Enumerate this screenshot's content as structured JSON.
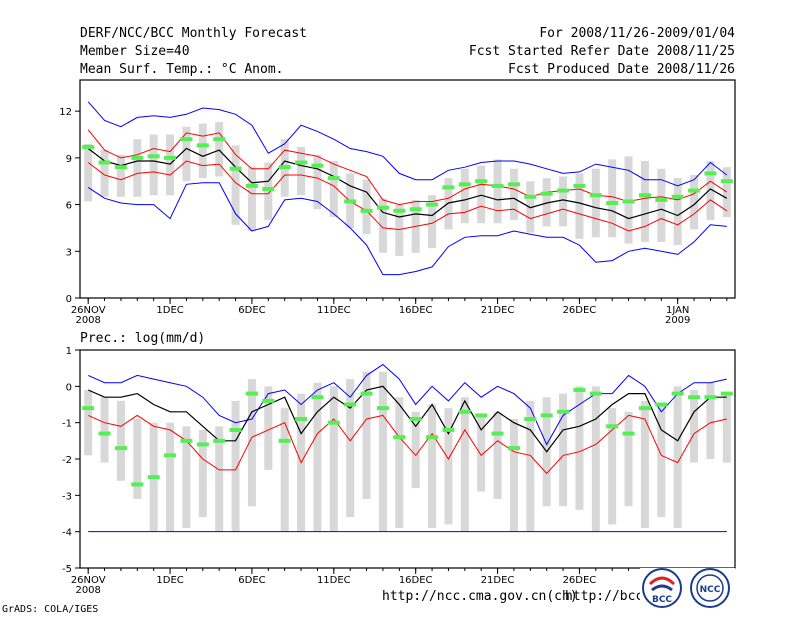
{
  "header": {
    "left_line1": "DERF/NCC/BCC Monthly Forecast",
    "left_line2": "Member Size=40",
    "left_line3": "Mean Surf. Temp.: °C Anom.",
    "right_line1": "For 2008/11/26-2009/01/04",
    "right_line2": "Fcst Started Refer Date 2008/11/25",
    "right_line3": "Fcst Produced Date 2008/11/26"
  },
  "footer": {
    "grads": "GrADS: COLA/IGES",
    "url1": "http://ncc.cma.gov.cn(ch)",
    "url2": "http://bcc.c",
    "logo_bcc": "BCC",
    "logo_ncc": "NCC"
  },
  "colors": {
    "mean": "#000000",
    "spread": "#ff0000",
    "extreme": "#0000ff",
    "bar": "#d8d8d8",
    "median": "#55ee55"
  },
  "chart_data": [
    {
      "type": "line",
      "title": "Mean Surf. Temp.: °C Anom.",
      "xlabel": "",
      "ylabel": "",
      "x_tick_labels": [
        "26NOV\n2008",
        "1DEC",
        "6DEC",
        "11DEC",
        "16DEC",
        "21DEC",
        "26DEC",
        "1JAN\n2009"
      ],
      "x_tick_days": [
        0,
        5,
        10,
        15,
        20,
        25,
        30,
        36
      ],
      "ylim": [
        0,
        14
      ],
      "y_ticks": [
        0,
        3,
        6,
        9,
        12
      ],
      "days": 40,
      "series": [
        {
          "name": "max",
          "values": [
            12.6,
            11.4,
            11,
            11.6,
            11.7,
            11.6,
            11.8,
            12.2,
            12.1,
            11.8,
            11.1,
            9.3,
            9.9,
            11.1,
            10.7,
            10.2,
            9.6,
            9.4,
            9.1,
            8.0,
            7.6,
            7.6,
            8.2,
            8.4,
            8.7,
            8.8,
            8.8,
            8.6,
            8.3,
            8.0,
            8.1,
            8.6,
            8.4,
            8.2,
            7.6,
            7.6,
            7.2,
            7.6,
            8.7,
            7.9
          ]
        },
        {
          "name": "upper",
          "values": [
            10.8,
            9.5,
            9,
            9.2,
            9.6,
            9.4,
            10.6,
            10.4,
            10.6,
            9.2,
            8.3,
            8.3,
            9.5,
            9.3,
            9.1,
            8.6,
            8.2,
            7.8,
            6.3,
            6.0,
            6.2,
            6.2,
            6.4,
            7.0,
            7.3,
            7.2,
            7.0,
            6.5,
            6.8,
            6.9,
            7.0,
            6.6,
            6.5,
            6.2,
            6.4,
            6.5,
            6.3,
            6.7,
            7.5,
            6.8
          ]
        },
        {
          "name": "mean",
          "values": [
            9.6,
            8.8,
            8.5,
            8.8,
            8.8,
            8.6,
            9.6,
            9.1,
            9.5,
            8.4,
            7.4,
            7.5,
            8.8,
            8.5,
            8.3,
            7.8,
            7.2,
            6.8,
            5.5,
            5.2,
            5.4,
            5.3,
            6.1,
            6.3,
            6.6,
            6.3,
            6.4,
            5.8,
            6.1,
            6.3,
            6.1,
            5.8,
            5.6,
            5.1,
            5.4,
            5.7,
            5.3,
            6.0,
            7.0,
            6.4
          ]
        },
        {
          "name": "lower",
          "values": [
            8.7,
            7.9,
            7.6,
            8.0,
            8.1,
            7.9,
            8.8,
            8.5,
            8.6,
            7.4,
            6.7,
            6.7,
            7.9,
            7.9,
            7.7,
            7.2,
            6.2,
            5.6,
            4.5,
            4.4,
            4.6,
            4.8,
            5.4,
            5.5,
            5.9,
            5.6,
            5.7,
            5.1,
            5.4,
            5.7,
            5.4,
            5.1,
            4.8,
            4.3,
            4.6,
            5.1,
            4.7,
            5.4,
            6.3,
            5.6
          ]
        },
        {
          "name": "min",
          "values": [
            7.1,
            6.4,
            6.1,
            6.0,
            6.0,
            5.1,
            7.3,
            7.4,
            7.4,
            5.4,
            4.3,
            4.6,
            6.3,
            6.4,
            6.2,
            5.4,
            4.5,
            3.4,
            1.5,
            1.5,
            1.7,
            2.0,
            3.3,
            3.9,
            4.0,
            4.0,
            4.3,
            4.1,
            3.9,
            3.9,
            3.4,
            2.3,
            2.4,
            3.0,
            3.2,
            3.0,
            2.8,
            3.6,
            4.7,
            4.6
          ]
        },
        {
          "name": "median",
          "values": [
            9.7,
            8.7,
            8.4,
            9.0,
            9.1,
            9.0,
            10.2,
            9.8,
            10.2,
            8.3,
            7.2,
            7.0,
            8.4,
            8.7,
            8.5,
            7.7,
            6.2,
            5.6,
            5.8,
            5.6,
            5.7,
            6.0,
            7.1,
            7.3,
            7.5,
            7.2,
            7.3,
            6.5,
            6.7,
            6.9,
            7.2,
            6.6,
            6.1,
            6.2,
            6.6,
            6.3,
            6.5,
            6.9,
            8.0,
            7.5
          ]
        },
        {
          "name": "bar_top",
          "values": [
            9.9,
            9.5,
            9.2,
            10.2,
            10.5,
            10.5,
            11.0,
            11.2,
            11.3,
            9.8,
            8.4,
            8.7,
            10.2,
            9.7,
            9.2,
            8.8,
            8.0,
            7.6,
            6.4,
            6.0,
            6.3,
            6.6,
            7.7,
            8.3,
            8.5,
            8.9,
            8.3,
            7.5,
            7.7,
            7.8,
            8.0,
            8.3,
            8.9,
            9.1,
            8.8,
            8.3,
            7.7,
            7.9,
            8.8,
            8.4
          ]
        },
        {
          "name": "bar_bottom",
          "values": [
            6.2,
            6.5,
            6.5,
            6.5,
            6.6,
            6.6,
            7.5,
            7.7,
            7.8,
            4.7,
            4.3,
            5.0,
            6.5,
            6.6,
            5.7,
            5.2,
            4.5,
            4.1,
            2.9,
            2.7,
            2.9,
            3.2,
            4.4,
            4.8,
            4.8,
            4.8,
            5.0,
            4.2,
            4.6,
            4.6,
            3.8,
            3.9,
            3.9,
            3.5,
            3.6,
            3.6,
            3.4,
            4.4,
            5.0,
            5.2
          ]
        }
      ]
    },
    {
      "type": "line",
      "title": "Prec.: log(mm/d)",
      "xlabel": "",
      "ylabel": "",
      "x_tick_labels": [
        "26NOV\n2008",
        "1DEC",
        "6DEC",
        "11DEC",
        "16DEC",
        "21DEC",
        "26DEC",
        "1JAN\n2009"
      ],
      "x_tick_days": [
        0,
        5,
        10,
        15,
        20,
        25,
        30,
        36
      ],
      "ylim": [
        -5,
        1
      ],
      "y_ticks": [
        -5,
        -4,
        -3,
        -2,
        -1,
        0,
        1
      ],
      "days": 40,
      "series": [
        {
          "name": "max",
          "values": [
            0.3,
            0.1,
            0.1,
            0.3,
            0.2,
            0.1,
            0.0,
            -0.3,
            -0.8,
            -1.0,
            -0.9,
            -0.2,
            -0.1,
            -0.5,
            -0.1,
            0.1,
            -0.3,
            0.3,
            0.6,
            0.2,
            -0.5,
            0.0,
            -0.4,
            0.1,
            -0.3,
            0.0,
            -0.2,
            -0.6,
            -1.6,
            -0.8,
            -0.5,
            -0.2,
            -0.2,
            0.3,
            0.0,
            -0.7,
            -0.2,
            0.1,
            0.1,
            0.2
          ]
        },
        {
          "name": "mean",
          "values": [
            -0.1,
            -0.3,
            -0.3,
            -0.2,
            -0.5,
            -0.7,
            -0.7,
            -1.1,
            -1.5,
            -1.5,
            -0.7,
            -0.5,
            -0.3,
            -1.3,
            -0.7,
            -0.3,
            -0.6,
            -0.1,
            0.0,
            -0.5,
            -1.1,
            -0.5,
            -1.3,
            -0.4,
            -1.2,
            -0.7,
            -1.0,
            -1.2,
            -1.8,
            -1.2,
            -1.1,
            -0.9,
            -0.5,
            -0.2,
            -0.2,
            -1.2,
            -1.5,
            -0.7,
            -0.3,
            -0.3
          ]
        },
        {
          "name": "lower",
          "values": [
            -0.8,
            -1.0,
            -1.1,
            -0.8,
            -1.1,
            -1.2,
            -1.5,
            -2.0,
            -2.3,
            -2.3,
            -1.4,
            -1.2,
            -1.0,
            -2.1,
            -1.3,
            -0.9,
            -1.5,
            -0.9,
            -0.8,
            -1.4,
            -1.9,
            -1.3,
            -2.0,
            -1.2,
            -1.9,
            -1.5,
            -1.8,
            -1.9,
            -2.4,
            -1.9,
            -1.8,
            -1.6,
            -1.2,
            -0.8,
            -0.9,
            -1.9,
            -2.1,
            -1.3,
            -1.0,
            -0.9
          ]
        },
        {
          "name": "median",
          "values": [
            -0.6,
            -1.3,
            -1.7,
            -2.7,
            -2.5,
            -1.9,
            -1.5,
            -1.6,
            -1.5,
            -1.2,
            -0.2,
            -0.4,
            -1.5,
            -0.9,
            -0.3,
            -1.0,
            -0.5,
            -0.2,
            -0.6,
            -1.4,
            -0.9,
            -1.4,
            -1.2,
            -0.7,
            -0.8,
            -1.3,
            -1.7,
            -0.9,
            -0.8,
            -0.7,
            -0.1,
            -0.2,
            -1.1,
            -1.3,
            -0.6,
            -0.5,
            -0.2,
            -0.3,
            -0.3,
            -0.2
          ]
        },
        {
          "name": "bar_top",
          "values": [
            -0.1,
            -0.3,
            -0.4,
            -0.9,
            -1.0,
            -1.0,
            -1.1,
            -1.2,
            -1.1,
            -0.4,
            0.2,
            0.0,
            -0.6,
            -0.2,
            0.1,
            0.0,
            0.2,
            0.4,
            0.4,
            -0.3,
            -0.7,
            -0.5,
            -0.6,
            -0.3,
            -0.8,
            -0.7,
            -0.9,
            -0.4,
            -0.3,
            -0.2,
            0.0,
            0.0,
            -0.6,
            -0.7,
            -0.4,
            -0.5,
            0.0,
            -0.1,
            0.1,
            -0.2
          ]
        },
        {
          "name": "bar_bottom",
          "values": [
            -1.9,
            -2.1,
            -2.6,
            -3.1,
            -4.0,
            -4.0,
            -3.9,
            -3.6,
            -4.0,
            -4.0,
            -3.3,
            -2.3,
            -4.0,
            -4.0,
            -4.0,
            -4.0,
            -3.6,
            -3.1,
            -4.0,
            -3.9,
            -2.8,
            -3.9,
            -3.8,
            -4.0,
            -2.9,
            -3.1,
            -4.0,
            -4.0,
            -3.3,
            -3.3,
            -3.4,
            -4.0,
            -3.8,
            -3.3,
            -3.9,
            -3.6,
            -3.9,
            -2.1,
            -2.0,
            -2.1
          ]
        },
        {
          "name": "floor",
          "values": [
            -4,
            -4,
            -4,
            -4,
            -4,
            -4,
            -4,
            -4,
            -4,
            -4,
            -4,
            -4,
            -4,
            -4,
            -4,
            -4,
            -4,
            -4,
            -4,
            -4,
            -4,
            -4,
            -4,
            -4,
            -4,
            -4,
            -4,
            -4,
            -4,
            -4,
            -4,
            -4,
            -4,
            -4,
            -4,
            -4,
            -4,
            -4,
            -4,
            -4
          ]
        }
      ]
    }
  ]
}
